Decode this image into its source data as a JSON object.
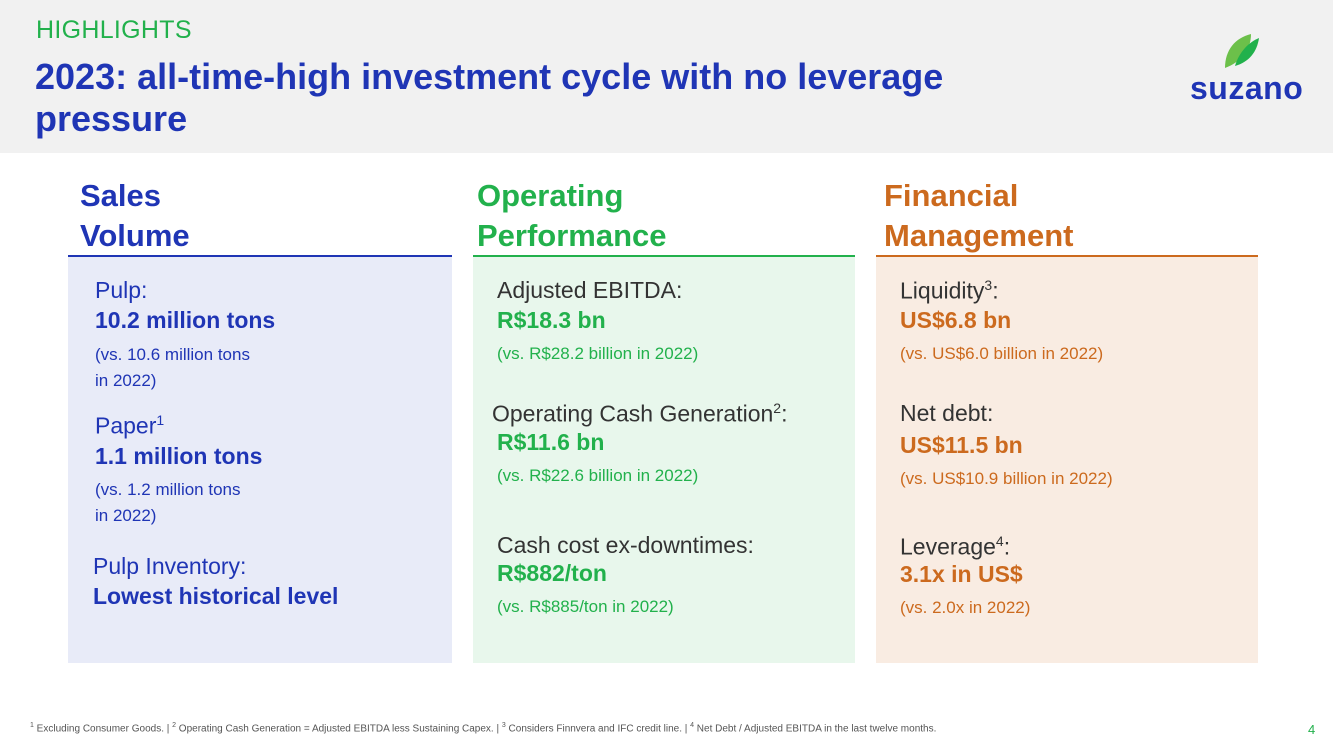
{
  "header": {
    "kicker": "HIGHLIGHTS",
    "title": "2023: all-time-high investment cycle with no leverage pressure",
    "logo_text": "suzano",
    "logo_icon": "leaf-icon"
  },
  "colors": {
    "blue": "#1f35b5",
    "green": "#22b14c",
    "orange": "#cc6a1e",
    "blue_panel": "#e8ebf8",
    "green_panel": "#e8f7ec",
    "orange_panel": "#f9ece2",
    "header_bg": "#f1f1f1"
  },
  "sales": {
    "heading_line1": "Sales",
    "heading_line2": "Volume",
    "pulp_label": "Pulp:",
    "pulp_value": "10.2 million tons",
    "pulp_note_line1": "(vs. 10.6 million tons",
    "pulp_note_line2": "in 2022)",
    "paper_label": "Paper",
    "paper_sup": "1",
    "paper_value": "1.1 million tons",
    "paper_note_line1": "(vs. 1.2 million tons",
    "paper_note_line2": "in 2022)",
    "inventory_label": "Pulp Inventory:",
    "inventory_value": "Lowest historical level"
  },
  "operating": {
    "heading_line1": "Operating",
    "heading_line2": "Performance",
    "ebitda_label": "Adjusted EBITDA:",
    "ebitda_value": "R$18.3 bn",
    "ebitda_note": "(vs. R$28.2 billion in 2022)",
    "ocg_label": "Operating Cash Generation",
    "ocg_sup": "2",
    "ocg_suffix": ":",
    "ocg_value": "R$11.6 bn",
    "ocg_note": "(vs. R$22.6 billion in 2022)",
    "cashcost_label": "Cash cost ex-downtimes:",
    "cashcost_value": "R$882/ton",
    "cashcost_note": "(vs. R$885/ton in 2022)"
  },
  "financial": {
    "heading_line1": "Financial",
    "heading_line2": "Management",
    "liquidity_label": "Liquidity",
    "liquidity_sup": "3",
    "liquidity_suffix": ":",
    "liquidity_value": "US$6.8 bn",
    "liquidity_note": "(vs. US$6.0 billion in 2022)",
    "netdebt_label": "Net debt:",
    "netdebt_value": "US$11.5 bn",
    "netdebt_note": "(vs. US$10.9 billion in 2022)",
    "leverage_label": "Leverage",
    "leverage_sup": "4",
    "leverage_suffix": ":",
    "leverage_value": "3.1x in US$",
    "leverage_note": "(vs. 2.0x in 2022)"
  },
  "footer": {
    "fn1_sup": "1",
    "fn1": " Excluding Consumer Goods. | ",
    "fn2_sup": "2",
    "fn2": " Operating Cash Generation = Adjusted EBITDA less Sustaining Capex. | ",
    "fn3_sup": "3",
    "fn3": " Considers Finnvera and IFC credit line. | ",
    "fn4_sup": "4",
    "fn4": " Net Debt / Adjusted EBITDA in the last twelve months.",
    "page_number": "4"
  }
}
